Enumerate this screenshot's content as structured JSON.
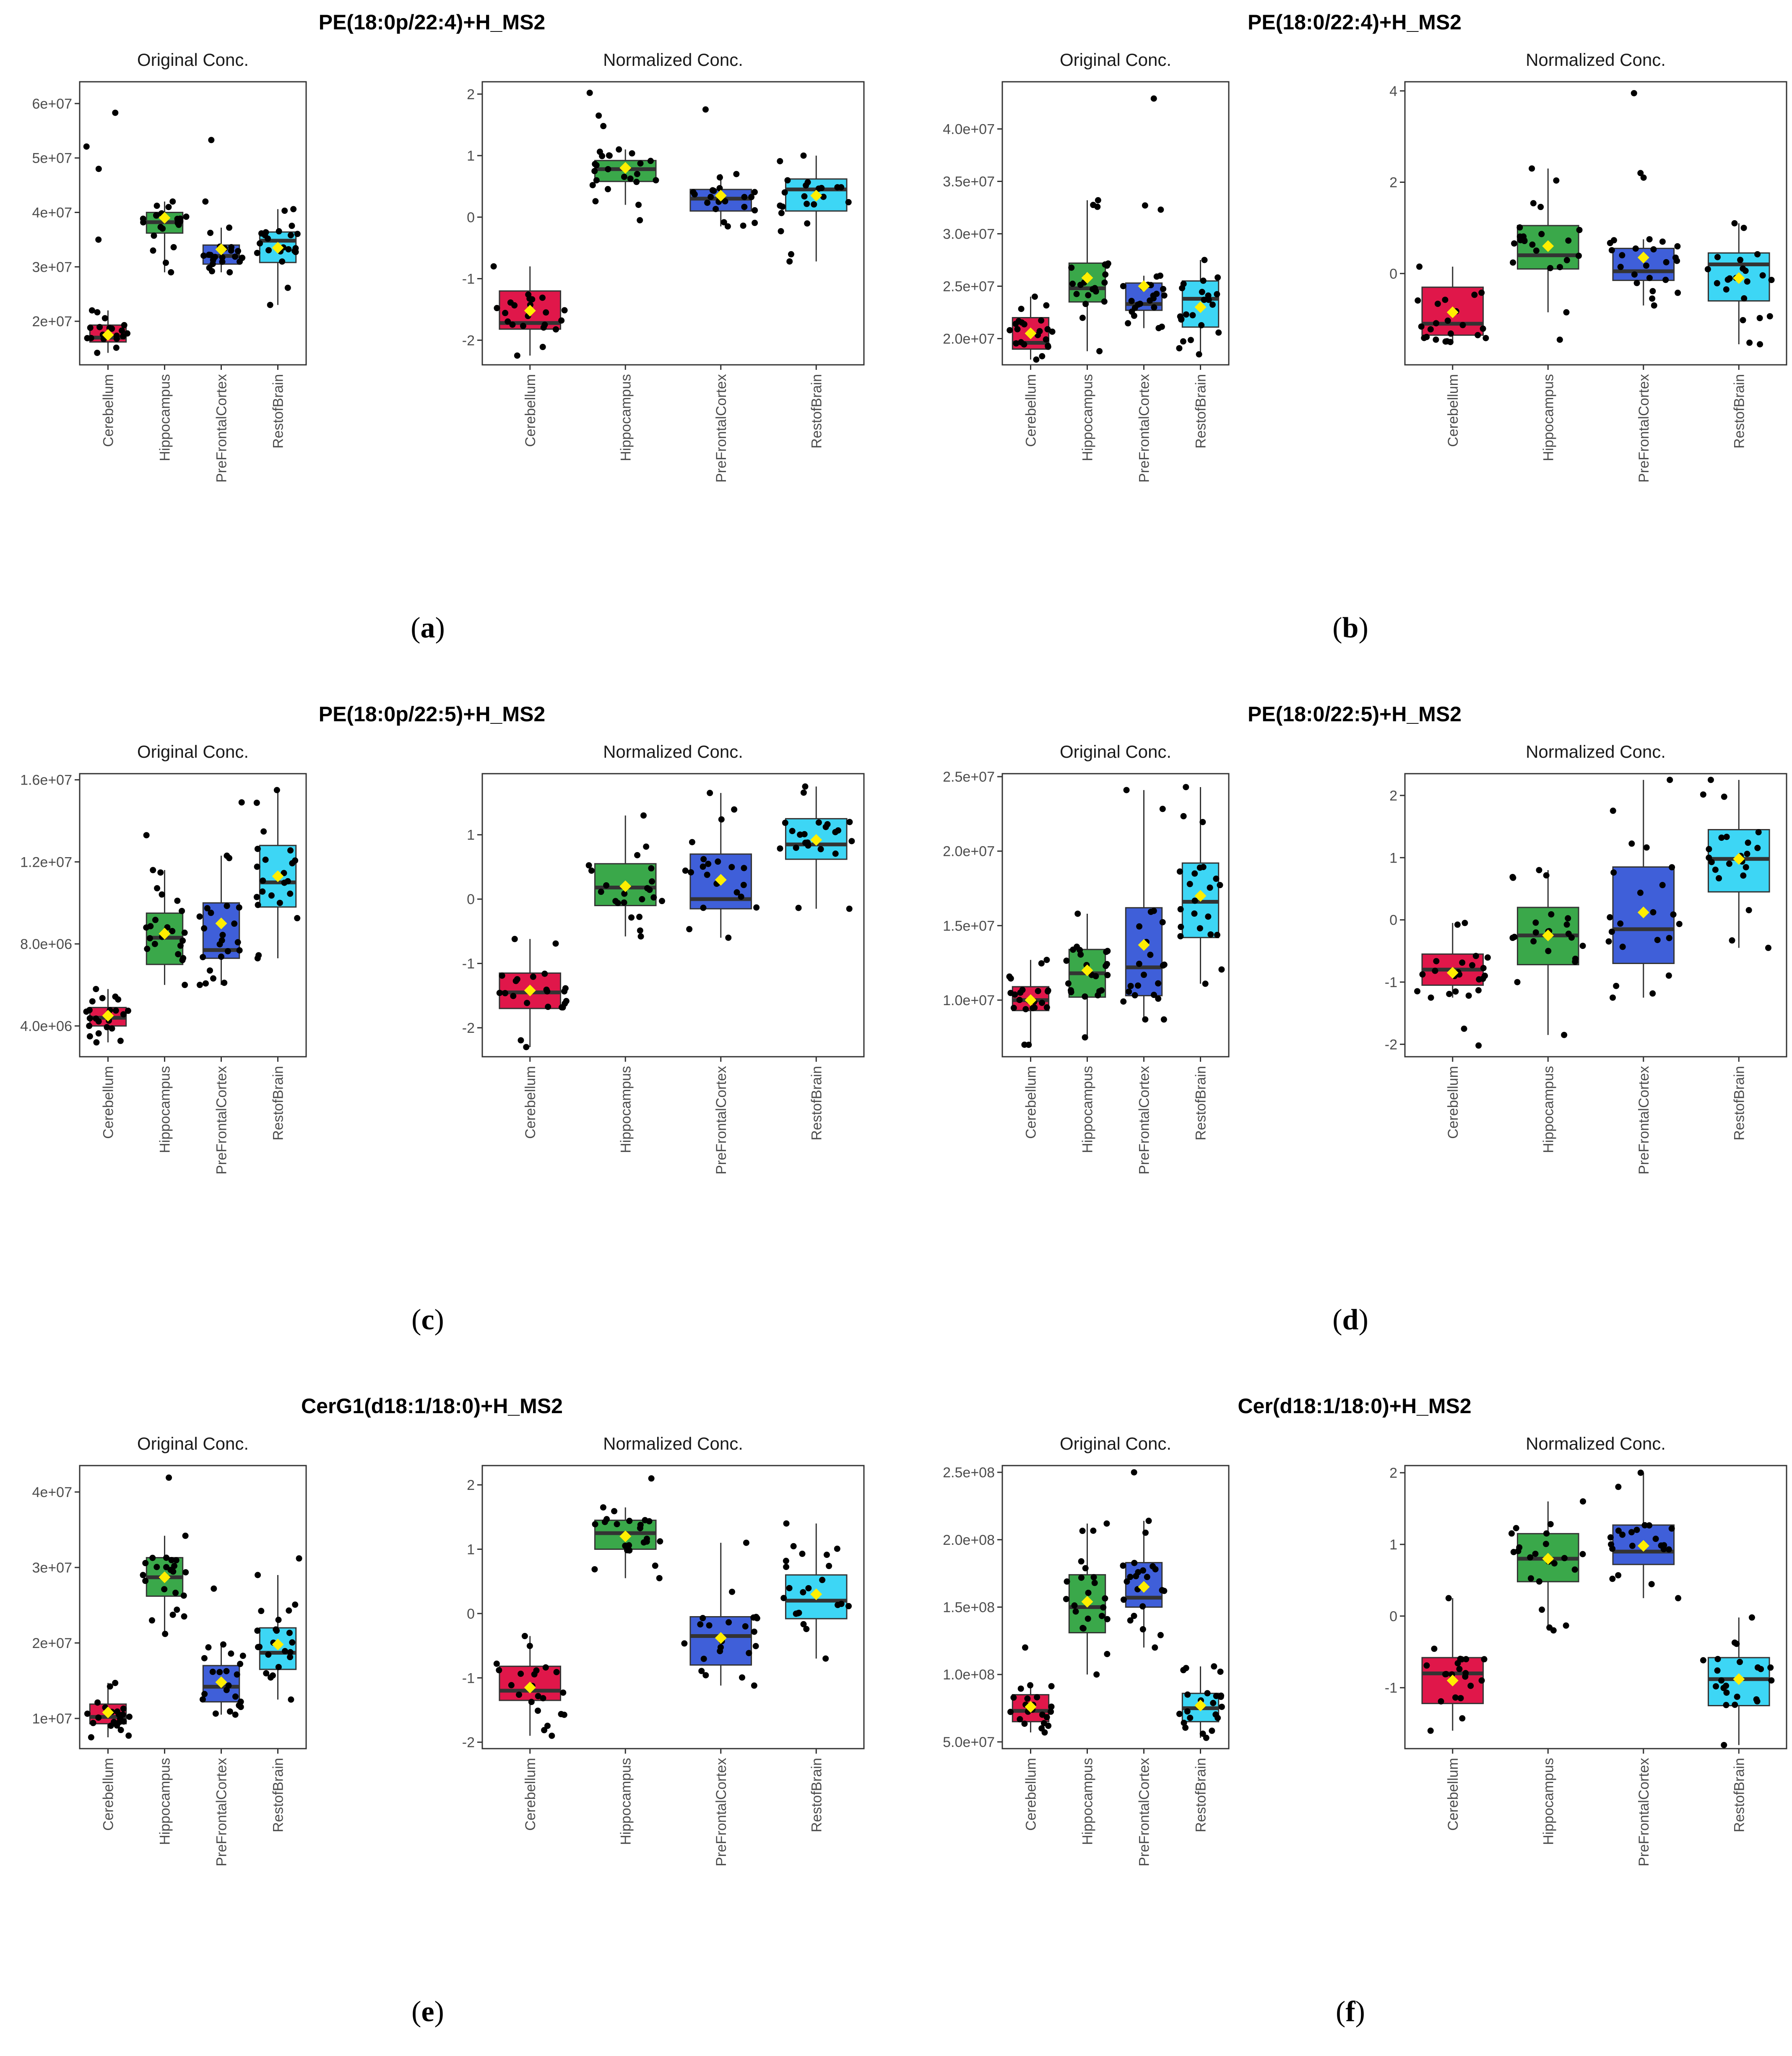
{
  "figure": {
    "groups": [
      "Cerebellum",
      "Hippocampus",
      "PreFrontalCortex",
      "RestofBrain"
    ],
    "colors": {
      "Cerebellum": "#e0174a",
      "Hippocampus": "#3aa84a",
      "PreFrontalCortex": "#3f5fd9",
      "RestofBrain": "#3dd6f5",
      "mean": "#ffee00"
    },
    "panel_titles": {
      "original": "Original Conc.",
      "normalized": "Normalized Conc."
    }
  },
  "chart_data": [
    {
      "id": "a",
      "label": "a",
      "title": "PE(18:0p/22:4)+H_MS2",
      "type": "boxplot",
      "original": {
        "ylim": [
          12000000,
          64000000
        ],
        "ticks": [
          20000000,
          30000000,
          40000000,
          50000000,
          60000000
        ],
        "tick_labels": [
          "2e+07",
          "3e+07",
          "4e+07",
          "5e+07",
          "6e+07"
        ],
        "boxes": [
          {
            "group": "Cerebellum",
            "lw": 14200000,
            "q1": 16200000,
            "median": 17000000,
            "q3": 19300000,
            "uw": 22000000,
            "mean": 17500000
          },
          {
            "group": "Hippocampus",
            "lw": 29000000,
            "q1": 36200000,
            "median": 38200000,
            "q3": 40000000,
            "uw": 42000000,
            "mean": 39000000
          },
          {
            "group": "PreFrontalCortex",
            "lw": 29000000,
            "q1": 30500000,
            "median": 32000000,
            "q3": 34000000,
            "uw": 37200000,
            "mean": 33200000
          },
          {
            "group": "RestofBrain",
            "lw": 23000000,
            "q1": 30800000,
            "median": 34800000,
            "q3": 36400000,
            "uw": 40600000,
            "mean": 33500000
          }
        ],
        "outliers": [
          [
            58300000,
            52100000,
            48000000,
            35000000
          ],
          [],
          [
            53300000,
            42000000
          ],
          []
        ]
      },
      "normalized": {
        "ylim": [
          -2.4,
          2.2
        ],
        "ticks": [
          -2,
          -1,
          0,
          1,
          2
        ],
        "tick_labels": [
          "-2",
          "-1",
          "0",
          "1",
          "2"
        ],
        "boxes": [
          {
            "group": "Cerebellum",
            "lw": -2.25,
            "q1": -1.82,
            "median": -1.72,
            "q3": -1.2,
            "uw": -0.8,
            "mean": -1.52
          },
          {
            "group": "Hippocampus",
            "lw": 0.2,
            "q1": 0.58,
            "median": 0.78,
            "q3": 0.92,
            "uw": 1.1,
            "mean": 0.8
          },
          {
            "group": "PreFrontalCortex",
            "lw": -0.15,
            "q1": 0.1,
            "median": 0.3,
            "q3": 0.45,
            "uw": 0.7,
            "mean": 0.35
          },
          {
            "group": "RestofBrain",
            "lw": -0.72,
            "q1": 0.1,
            "median": 0.45,
            "q3": 0.62,
            "uw": 1.0,
            "mean": 0.35
          }
        ],
        "outliers": [
          [],
          [
            2.02,
            1.65,
            1.48,
            -0.05
          ],
          [
            1.75
          ],
          []
        ]
      }
    },
    {
      "id": "b",
      "label": "b",
      "title": "PE(18:0/22:4)+H_MS2",
      "type": "boxplot",
      "original": {
        "ylim": [
          17500000,
          44500000
        ],
        "ticks": [
          20000000,
          25000000,
          30000000,
          35000000,
          40000000
        ],
        "tick_labels": [
          "2.0e+07",
          "2.5e+07",
          "3.0e+07",
          "3.5e+07",
          "4.0e+07"
        ],
        "boxes": [
          {
            "group": "Cerebellum",
            "lw": 18000000,
            "q1": 19000000,
            "median": 19600000,
            "q3": 22000000,
            "uw": 24000000,
            "mean": 20500000
          },
          {
            "group": "Hippocampus",
            "lw": 18800000,
            "q1": 23500000,
            "median": 24800000,
            "q3": 27200000,
            "uw": 33200000,
            "mean": 25800000
          },
          {
            "group": "PreFrontalCortex",
            "lw": 21000000,
            "q1": 22700000,
            "median": 23300000,
            "q3": 25300000,
            "uw": 26000000,
            "mean": 25000000
          },
          {
            "group": "RestofBrain",
            "lw": 18500000,
            "q1": 21100000,
            "median": 23800000,
            "q3": 25500000,
            "uw": 27500000,
            "mean": 23000000
          }
        ],
        "outliers": [
          [],
          [],
          [
            42900000,
            32700000,
            32300000
          ],
          []
        ]
      },
      "normalized": {
        "ylim": [
          -2.0,
          4.2
        ],
        "ticks": [
          0,
          2,
          4
        ],
        "tick_labels": [
          "0",
          "2",
          "4"
        ],
        "boxes": [
          {
            "group": "Cerebellum",
            "lw": -1.5,
            "q1": -1.35,
            "median": -1.1,
            "q3": -0.3,
            "uw": 0.15,
            "mean": -0.85
          },
          {
            "group": "Hippocampus",
            "lw": -0.85,
            "q1": 0.1,
            "median": 0.4,
            "q3": 1.05,
            "uw": 2.3,
            "mean": 0.6
          },
          {
            "group": "PreFrontalCortex",
            "lw": -0.7,
            "q1": -0.15,
            "median": 0.05,
            "q3": 0.55,
            "uw": 0.75,
            "mean": 0.35
          },
          {
            "group": "RestofBrain",
            "lw": -1.55,
            "q1": -0.6,
            "median": 0.2,
            "q3": 0.45,
            "uw": 1.1,
            "mean": -0.1
          }
        ],
        "outliers": [
          [],
          [
            -1.45
          ],
          [
            3.95,
            2.2,
            2.1
          ],
          []
        ]
      }
    },
    {
      "id": "c",
      "label": "c",
      "title": "PE(18:0p/22:5)+H_MS2",
      "type": "boxplot",
      "original": {
        "ylim": [
          2500000,
          16300000
        ],
        "ticks": [
          4000000,
          8000000,
          12000000,
          16000000
        ],
        "tick_labels": [
          "4.0e+06",
          "8.0e+06",
          "1.2e+07",
          "1.6e+07"
        ],
        "boxes": [
          {
            "group": "Cerebellum",
            "lw": 3200000,
            "q1": 4000000,
            "median": 4400000,
            "q3": 4900000,
            "uw": 5800000,
            "mean": 4500000
          },
          {
            "group": "Hippocampus",
            "lw": 6000000,
            "q1": 7000000,
            "median": 8300000,
            "q3": 9500000,
            "uw": 11600000,
            "mean": 8500000
          },
          {
            "group": "PreFrontalCortex",
            "lw": 6000000,
            "q1": 7300000,
            "median": 7700000,
            "q3": 10000000,
            "uw": 12300000,
            "mean": 9000000
          },
          {
            "group": "RestofBrain",
            "lw": 7300000,
            "q1": 9800000,
            "median": 11000000,
            "q3": 12800000,
            "uw": 15500000,
            "mean": 11300000
          }
        ],
        "outliers": [
          [],
          [
            13300000
          ],
          [
            14900000
          ],
          []
        ]
      },
      "normalized": {
        "ylim": [
          -2.45,
          1.95
        ],
        "ticks": [
          -2,
          -1,
          0,
          1
        ],
        "tick_labels": [
          "-2",
          "-1",
          "0",
          "1"
        ],
        "boxes": [
          {
            "group": "Cerebellum",
            "lw": -2.3,
            "q1": -1.7,
            "median": -1.45,
            "q3": -1.15,
            "uw": -0.62,
            "mean": -1.42
          },
          {
            "group": "Hippocampus",
            "lw": -0.58,
            "q1": -0.1,
            "median": 0.18,
            "q3": 0.55,
            "uw": 1.3,
            "mean": 0.2
          },
          {
            "group": "PreFrontalCortex",
            "lw": -0.6,
            "q1": -0.15,
            "median": 0.0,
            "q3": 0.7,
            "uw": 1.65,
            "mean": 0.3
          },
          {
            "group": "RestofBrain",
            "lw": -0.15,
            "q1": 0.62,
            "median": 0.85,
            "q3": 1.25,
            "uw": 1.75,
            "mean": 0.92
          }
        ],
        "outliers": [
          [],
          [],
          [],
          []
        ]
      }
    },
    {
      "id": "d",
      "label": "d",
      "title": "PE(18:0/22:5)+H_MS2",
      "type": "boxplot",
      "original": {
        "ylim": [
          6200000,
          25200000
        ],
        "ticks": [
          10000000,
          15000000,
          20000000,
          25000000
        ],
        "tick_labels": [
          "1.0e+07",
          "1.5e+07",
          "2.0e+07",
          "2.5e+07"
        ],
        "boxes": [
          {
            "group": "Cerebellum",
            "lw": 7000000,
            "q1": 9300000,
            "median": 10000000,
            "q3": 10900000,
            "uw": 12700000,
            "mean": 10000000
          },
          {
            "group": "Hippocampus",
            "lw": 7500000,
            "q1": 10200000,
            "median": 11800000,
            "q3": 13400000,
            "uw": 15800000,
            "mean": 12000000
          },
          {
            "group": "PreFrontalCortex",
            "lw": 8700000,
            "q1": 10300000,
            "median": 12200000,
            "q3": 16200000,
            "uw": 24100000,
            "mean": 13700000
          },
          {
            "group": "RestofBrain",
            "lw": 11100000,
            "q1": 14200000,
            "median": 16600000,
            "q3": 19200000,
            "uw": 24300000,
            "mean": 17000000
          }
        ],
        "outliers": [
          [],
          [],
          [],
          []
        ]
      },
      "normalized": {
        "ylim": [
          -2.2,
          2.35
        ],
        "ticks": [
          -2,
          -1,
          0,
          1,
          2
        ],
        "tick_labels": [
          "-2",
          "-1",
          "0",
          "1",
          "2"
        ],
        "boxes": [
          {
            "group": "Cerebellum",
            "lw": -1.25,
            "q1": -1.05,
            "median": -0.8,
            "q3": -0.55,
            "uw": -0.05,
            "mean": -0.85
          },
          {
            "group": "Hippocampus",
            "lw": -1.85,
            "q1": -0.72,
            "median": -0.25,
            "q3": 0.2,
            "uw": 0.8,
            "mean": -0.25
          },
          {
            "group": "PreFrontalCortex",
            "lw": -1.25,
            "q1": -0.7,
            "median": -0.15,
            "q3": 0.85,
            "uw": 2.25,
            "mean": 0.12
          },
          {
            "group": "RestofBrain",
            "lw": -0.45,
            "q1": 0.45,
            "median": 0.98,
            "q3": 1.45,
            "uw": 2.25,
            "mean": 0.98
          }
        ],
        "outliers": [
          [
            -1.75,
            -2.02
          ],
          [],
          [],
          []
        ]
      }
    },
    {
      "id": "e",
      "label": "e",
      "title": "CerG1(d18:1/18:0)+H_MS2",
      "type": "boxplot",
      "original": {
        "ylim": [
          6000000,
          43500000
        ],
        "ticks": [
          10000000,
          20000000,
          30000000,
          40000000
        ],
        "tick_labels": [
          "1e+07",
          "2e+07",
          "3e+07",
          "4e+07"
        ],
        "boxes": [
          {
            "group": "Cerebellum",
            "lw": 7500000,
            "q1": 9300000,
            "median": 10200000,
            "q3": 11900000,
            "uw": 14700000,
            "mean": 10800000
          },
          {
            "group": "Hippocampus",
            "lw": 21200000,
            "q1": 26200000,
            "median": 28700000,
            "q3": 31300000,
            "uw": 34200000,
            "mean": 28700000
          },
          {
            "group": "PreFrontalCortex",
            "lw": 10500000,
            "q1": 12200000,
            "median": 14200000,
            "q3": 17000000,
            "uw": 19800000,
            "mean": 14800000
          },
          {
            "group": "RestofBrain",
            "lw": 12500000,
            "q1": 16500000,
            "median": 18700000,
            "q3": 22000000,
            "uw": 29000000,
            "mean": 19800000
          }
        ],
        "outliers": [
          [],
          [
            41900000
          ],
          [
            27200000
          ],
          [
            31200000
          ]
        ]
      },
      "normalized": {
        "ylim": [
          -2.1,
          2.3
        ],
        "ticks": [
          -2,
          -1,
          0,
          1,
          2
        ],
        "tick_labels": [
          "-2",
          "-1",
          "0",
          "1",
          "2"
        ],
        "boxes": [
          {
            "group": "Cerebellum",
            "lw": -1.9,
            "q1": -1.35,
            "median": -1.2,
            "q3": -0.82,
            "uw": -0.35,
            "mean": -1.15
          },
          {
            "group": "Hippocampus",
            "lw": 0.55,
            "q1": 1.0,
            "median": 1.25,
            "q3": 1.45,
            "uw": 1.65,
            "mean": 1.2
          },
          {
            "group": "PreFrontalCortex",
            "lw": -1.12,
            "q1": -0.8,
            "median": -0.35,
            "q3": -0.05,
            "uw": 1.1,
            "mean": -0.38
          },
          {
            "group": "RestofBrain",
            "lw": -0.7,
            "q1": -0.08,
            "median": 0.2,
            "q3": 0.6,
            "uw": 1.4,
            "mean": 0.3
          }
        ],
        "outliers": [
          [],
          [
            2.1
          ],
          [],
          []
        ]
      }
    },
    {
      "id": "f",
      "label": "f",
      "title": "Cer(d18:1/18:0)+H_MS2",
      "type": "boxplot",
      "original": {
        "ylim": [
          45000000,
          255000000
        ],
        "ticks": [
          50000000,
          100000000,
          150000000,
          200000000,
          250000000
        ],
        "tick_labels": [
          "5.0e+07",
          "1.0e+08",
          "1.5e+08",
          "2.0e+08",
          "2.5e+08"
        ],
        "boxes": [
          {
            "group": "Cerebellum",
            "lw": 57000000,
            "q1": 65000000,
            "median": 73000000,
            "q3": 85000000,
            "uw": 92000000,
            "mean": 76000000
          },
          {
            "group": "Hippocampus",
            "lw": 100000000,
            "q1": 131000000,
            "median": 150000000,
            "q3": 174000000,
            "uw": 212000000,
            "mean": 154000000
          },
          {
            "group": "PreFrontalCortex",
            "lw": 120000000,
            "q1": 150000000,
            "median": 157000000,
            "q3": 183000000,
            "uw": 214000000,
            "mean": 165000000
          },
          {
            "group": "RestofBrain",
            "lw": 53000000,
            "q1": 65000000,
            "median": 75000000,
            "q3": 86000000,
            "uw": 106000000,
            "mean": 77000000
          }
        ],
        "outliers": [
          [
            120000000
          ],
          [],
          [
            250000000
          ],
          []
        ]
      },
      "normalized": {
        "ylim": [
          -1.85,
          2.1
        ],
        "ticks": [
          -1,
          0,
          1,
          2
        ],
        "tick_labels": [
          "-1",
          "0",
          "1",
          "2"
        ],
        "boxes": [
          {
            "group": "Cerebellum",
            "lw": -1.6,
            "q1": -1.22,
            "median": -0.8,
            "q3": -0.58,
            "uw": 0.25,
            "mean": -0.9
          },
          {
            "group": "Hippocampus",
            "lw": -0.2,
            "q1": 0.48,
            "median": 0.8,
            "q3": 1.15,
            "uw": 1.6,
            "mean": 0.8
          },
          {
            "group": "PreFrontalCortex",
            "lw": 0.25,
            "q1": 0.72,
            "median": 0.9,
            "q3": 1.27,
            "uw": 2.0,
            "mean": 0.98
          },
          {
            "group": "RestofBrain",
            "lw": -1.8,
            "q1": -1.25,
            "median": -0.88,
            "q3": -0.58,
            "uw": -0.02,
            "mean": -0.88
          }
        ],
        "outliers": [
          [],
          [],
          [],
          []
        ]
      }
    }
  ]
}
